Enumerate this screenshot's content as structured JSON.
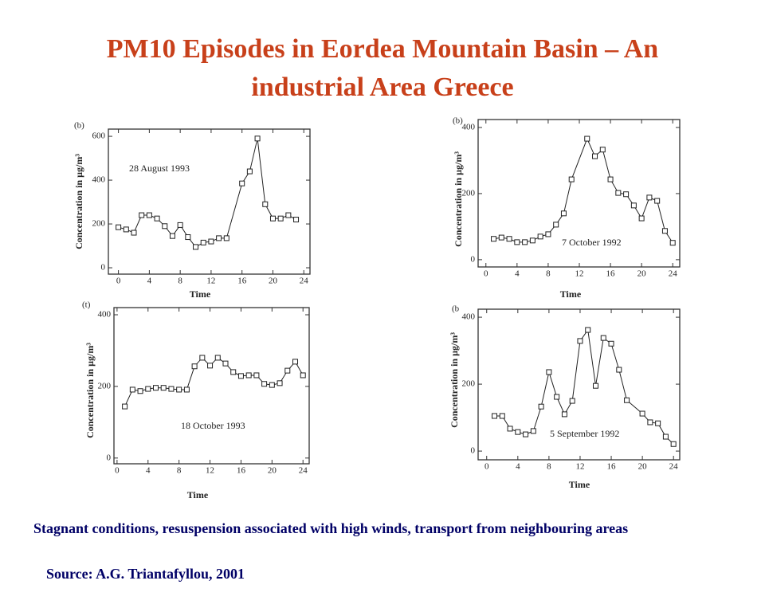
{
  "slide": {
    "title": "PM10 Episodes in Eordea Mountain Basin – An industrial Area Greece",
    "caption": "Stagnant conditions, resuspension associated with high winds, transport from neighbouring areas",
    "source": "Source: A.G. Triantafyllou, 2001"
  },
  "chart_data": [
    {
      "type": "line",
      "panel_label": "(b)",
      "annotation": "28 August 1993",
      "x_label": "Time",
      "y_label": "Concentration in µg/m³",
      "x": [
        0,
        1,
        2,
        3,
        4,
        5,
        6,
        7,
        8,
        9,
        10,
        11,
        12,
        13,
        14,
        16,
        17,
        18,
        19,
        20,
        21,
        22,
        23
      ],
      "values": [
        185,
        175,
        160,
        240,
        240,
        225,
        190,
        145,
        195,
        140,
        95,
        115,
        120,
        135,
        135,
        385,
        440,
        590,
        290,
        225,
        225,
        240,
        220
      ],
      "color": "#222222",
      "xlim": [
        -1.3,
        24.8
      ],
      "ylim": [
        -29,
        633
      ],
      "xticks": [
        0,
        4,
        8,
        12,
        16,
        20,
        24
      ],
      "yticks": [
        0,
        200,
        400,
        600
      ]
    },
    {
      "type": "line",
      "panel_label": "(b)",
      "annotation": "7 October 1992",
      "x_label": "Time",
      "y_label": "Concentration in µg/m³",
      "x": [
        1,
        2,
        3,
        4,
        5,
        6,
        7,
        8,
        9,
        10,
        11,
        13,
        14,
        15,
        16,
        17,
        18,
        19,
        20,
        21,
        22,
        23,
        24
      ],
      "values": [
        63,
        67,
        63,
        53,
        53,
        58,
        70,
        77,
        106,
        140,
        243,
        366,
        313,
        333,
        243,
        202,
        198,
        164,
        125,
        188,
        178,
        87,
        51
      ],
      "color": "#222222",
      "xlim": [
        -1.0,
        24.9
      ],
      "ylim": [
        -22,
        424
      ],
      "xticks": [
        0,
        4,
        8,
        12,
        16,
        20,
        24
      ],
      "yticks": [
        0,
        200,
        400
      ]
    },
    {
      "type": "line",
      "panel_label": "(t)",
      "annotation": "18 October 1993",
      "x_label": "Time",
      "y_label": "Concentration in µg/m³",
      "x": [
        1,
        2,
        3,
        4,
        5,
        6,
        7,
        8,
        9,
        10,
        11,
        12,
        13,
        14,
        15,
        16,
        17,
        18,
        19,
        20,
        21,
        22,
        23,
        24
      ],
      "values": [
        144,
        191,
        187,
        193,
        196,
        196,
        193,
        191,
        191,
        256,
        280,
        258,
        280,
        264,
        240,
        229,
        231,
        231,
        207,
        204,
        209,
        244,
        269,
        231
      ],
      "color": "#222222",
      "xlim": [
        -0.4,
        24.8
      ],
      "ylim": [
        -16,
        420
      ],
      "xticks": [
        0,
        4,
        8,
        12,
        16,
        20,
        24
      ],
      "yticks": [
        0,
        200,
        400
      ]
    },
    {
      "type": "line",
      "panel_label": "(b",
      "annotation": "5 September 1992",
      "x_label": "Time",
      "y_label": "Concentration in µg/m³",
      "x": [
        1,
        2,
        3,
        4,
        5,
        6,
        7,
        8,
        9,
        10,
        11,
        12,
        13,
        14,
        15,
        16,
        17,
        18,
        20,
        21,
        22,
        23,
        24
      ],
      "values": [
        105,
        105,
        67,
        57,
        50,
        60,
        133,
        236,
        162,
        110,
        150,
        329,
        362,
        195,
        338,
        321,
        243,
        152,
        112,
        86,
        83,
        43,
        21
      ],
      "color": "#222222",
      "xlim": [
        -1.1,
        24.8
      ],
      "ylim": [
        -26,
        424
      ],
      "xticks": [
        0,
        4,
        8,
        12,
        16,
        20,
        24
      ],
      "yticks": [
        0,
        200,
        400
      ]
    }
  ]
}
